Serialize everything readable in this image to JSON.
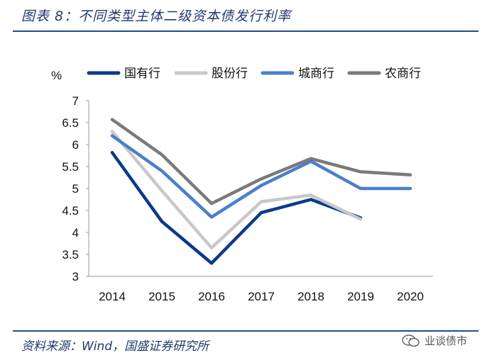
{
  "header": {
    "title": "图表 8：不同类型主体二级资本债发行利率"
  },
  "footer": {
    "source": "资料来源：Wind，国盛证券研究所",
    "watermark": "业谈债市"
  },
  "chart_data": {
    "type": "line",
    "title": "不同类型主体二级资本债发行利率",
    "ylabel": "%",
    "xlabel": "",
    "categories": [
      "2014",
      "2015",
      "2016",
      "2017",
      "2018",
      "2019",
      "2020"
    ],
    "ylim": [
      3,
      7
    ],
    "yticks": [
      "3",
      "3.5",
      "4",
      "4.5",
      "5",
      "5.5",
      "6",
      "6.5",
      "7"
    ],
    "legend_position": "top",
    "grid": false,
    "series": [
      {
        "name": "国有行",
        "color": "#0b3a8c",
        "values": [
          5.82,
          4.25,
          3.3,
          4.45,
          4.75,
          4.33,
          null
        ]
      },
      {
        "name": "股份行",
        "color": "#c8c8c8",
        "values": [
          6.3,
          4.95,
          3.65,
          4.7,
          4.85,
          4.3,
          null
        ]
      },
      {
        "name": "城商行",
        "color": "#4a7fcc",
        "values": [
          6.2,
          5.4,
          4.35,
          5.07,
          5.62,
          5.0,
          5.0
        ]
      },
      {
        "name": "农商行",
        "color": "#7a7a7a",
        "values": [
          6.57,
          5.77,
          4.66,
          5.22,
          5.68,
          5.38,
          5.31
        ]
      }
    ]
  }
}
